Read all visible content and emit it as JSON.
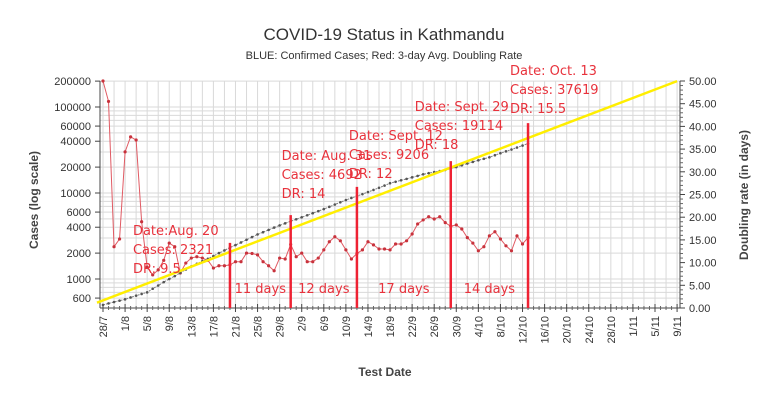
{
  "chart_data": {
    "type": "line",
    "title": "COVID-19 Status in Kathmandu",
    "subtitle": "BLUE: Confirmed Cases; Red: 3-day Avg. Doubling Rate",
    "xlabel": "Test Date",
    "ylabel_left": "Cases (log scale)",
    "ylabel_right": "Doubling rate (in days)",
    "y_left_scale": "log",
    "y_left_range": [
      500,
      200000
    ],
    "y_right_range": [
      0,
      50
    ],
    "x_range": [
      "28/7",
      "9/11"
    ],
    "grid": true,
    "x_ticks": [
      "28/7",
      "1/8",
      "5/8",
      "9/8",
      "13/8",
      "17/8",
      "21/8",
      "25/8",
      "29/8",
      "2/9",
      "6/9",
      "10/9",
      "14/9",
      "18/9",
      "22/9",
      "26/9",
      "30/9",
      "4/10",
      "8/10",
      "12/10",
      "16/10",
      "20/10",
      "24/10",
      "28/10",
      "1/11",
      "5/11",
      "9/11"
    ],
    "y_left_ticks": [
      "200000",
      "100000",
      "60000",
      "40000",
      "20000",
      "10000",
      "6000",
      "4000",
      "2000",
      "1000",
      "600"
    ],
    "y_right_ticks": [
      "0.00",
      "5.00",
      "10.00",
      "15.00",
      "20.00",
      "25.00",
      "30.00",
      "35.00",
      "40.00",
      "45.00",
      "50.00"
    ],
    "colors": {
      "cases": "#7f7f7f",
      "doubling_rate": "#e05a63",
      "trend": "#ffee00",
      "markers": "#ee2233",
      "annotations": "#e8323c"
    },
    "dates": [
      "28/7",
      "29/7",
      "30/7",
      "31/7",
      "1/8",
      "2/8",
      "3/8",
      "4/8",
      "5/8",
      "6/8",
      "7/8",
      "8/8",
      "9/8",
      "10/8",
      "11/8",
      "12/8",
      "13/8",
      "14/8",
      "15/8",
      "16/8",
      "17/8",
      "18/8",
      "19/8",
      "20/8",
      "21/8",
      "22/8",
      "23/8",
      "24/8",
      "25/8",
      "26/8",
      "27/8",
      "28/8",
      "29/8",
      "30/8",
      "31/8",
      "1/9",
      "2/9",
      "3/9",
      "4/9",
      "5/9",
      "6/9",
      "7/9",
      "8/9",
      "9/9",
      "10/9",
      "11/9",
      "12/9",
      "13/9",
      "14/9",
      "15/9",
      "16/9",
      "17/9",
      "18/9",
      "19/9",
      "20/9",
      "21/9",
      "22/9",
      "23/9",
      "24/9",
      "25/9",
      "26/9",
      "27/9",
      "28/9",
      "29/9",
      "30/9",
      "1/10",
      "2/10",
      "3/10",
      "4/10",
      "5/10",
      "6/10",
      "7/10",
      "8/10",
      "9/10",
      "10/10",
      "11/10",
      "12/10",
      "13/10"
    ],
    "series": [
      {
        "axis": "left",
        "values": [
          500,
          520,
          540,
          560,
          580,
          610,
          640,
          670,
          700,
          770,
          840,
          920,
          1000,
          1080,
          1180,
          1290,
          1400,
          1500,
          1610,
          1720,
          1850,
          2000,
          2150,
          2321,
          2480,
          2660,
          2860,
          3070,
          3300,
          3500,
          3720,
          3960,
          4200,
          4440,
          4692,
          4950,
          5220,
          5510,
          5820,
          6150,
          6500,
          6900,
          7340,
          7800,
          8280,
          8750,
          9206,
          9700,
          10250,
          10850,
          11500,
          12200,
          13000,
          13500,
          14050,
          14600,
          15200,
          15800,
          16500,
          17000,
          17500,
          18000,
          18550,
          19114,
          20000,
          21000,
          22000,
          23000,
          24000,
          25000,
          26000,
          27500,
          29000,
          30500,
          32000,
          33800,
          35600,
          37619
        ]
      },
      {
        "axis": "right",
        "values": [
          50,
          45.5,
          13.5,
          15.2,
          34.4,
          37.7,
          37,
          19,
          9,
          7.3,
          8.4,
          10.5,
          14.3,
          13.5,
          7.7,
          9.9,
          11,
          11.3,
          11,
          10.5,
          8.8,
          9.3,
          9.3,
          9.5,
          10.2,
          10.2,
          12.1,
          12,
          11.7,
          10.2,
          9.3,
          8.2,
          11,
          10.8,
          14,
          11.3,
          12.1,
          10.2,
          10.2,
          11,
          12.8,
          14.6,
          15.7,
          14.8,
          12.8,
          10.8,
          12,
          12.8,
          14.6,
          13.9,
          13,
          13,
          12.8,
          14.1,
          14.1,
          14.8,
          16.3,
          18.5,
          19.4,
          20.1,
          19.6,
          20.1,
          18.8,
          18,
          18.3,
          17.4,
          15.5,
          14.3,
          12.6,
          13.5,
          15.9,
          16.8,
          15.2,
          13.7,
          12.6,
          15.9,
          14.1,
          15.5
        ]
      }
    ],
    "trend_line": {
      "axis": "left",
      "from": [
        "28/7",
        560
      ],
      "to": [
        "9/11",
        200000
      ]
    },
    "markers": [
      {
        "date": "20/8",
        "top_cases": 2630,
        "lines": [
          "Date:Aug. 20",
          "Cases: 2321",
          "DR: 9.5"
        ]
      },
      {
        "date": "31/8",
        "top_cases": 5530,
        "lines": [
          "Date: Aug. 31",
          "Cases: 4692",
          "DR: 14"
        ]
      },
      {
        "date": "12/9",
        "top_cases": 11800,
        "lines": [
          "Date: Sept. 12",
          "Cases: 9206",
          "DR: 12"
        ]
      },
      {
        "date": "29/9",
        "top_cases": 23500,
        "lines": [
          "Date: Sept. 29",
          "Cases: 19114",
          "DR: 18"
        ]
      },
      {
        "date": "13/10",
        "top_cases": 65000,
        "lines": [
          "Date: Oct. 13",
          "Cases: 37619",
          "DR: 15.5"
        ]
      }
    ],
    "intervals": [
      "11 days",
      "12 days",
      "17 days",
      "14 days"
    ]
  }
}
